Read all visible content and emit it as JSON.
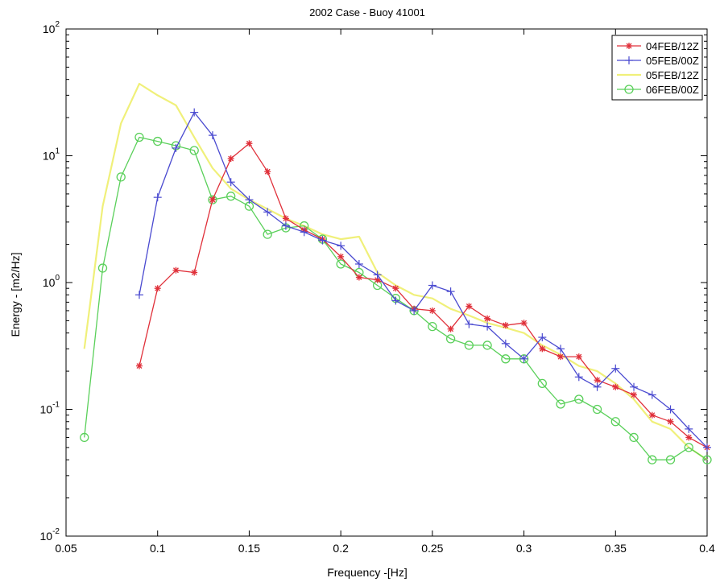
{
  "chart_data": {
    "type": "line",
    "title": "2002 Case - Buoy 41001",
    "xlabel": "Frequency -[Hz]",
    "ylabel": "Energy - [m2/Hz]",
    "xlim": [
      0.05,
      0.4
    ],
    "ylim": [
      0.01,
      100
    ],
    "yscale": "log",
    "grid": false,
    "legend_position": "top-right",
    "x_ticks": [
      0.05,
      0.1,
      0.15,
      0.2,
      0.25,
      0.3,
      0.35,
      0.4
    ],
    "x_tick_labels": [
      "0.05",
      "0.1",
      "0.15",
      "0.2",
      "0.25",
      "0.3",
      "0.35",
      "0.4"
    ],
    "y_ticks": [
      0.01,
      0.1,
      1,
      10,
      100
    ],
    "y_tick_bases": [
      "10",
      "10",
      "10",
      "10",
      "10"
    ],
    "y_tick_exps": [
      "-2",
      "-1",
      "0",
      "1",
      "2"
    ],
    "series": [
      {
        "name": "04FEB/12Z",
        "color": "#e0303a",
        "marker": "star",
        "x": [
          0.09,
          0.1,
          0.11,
          0.12,
          0.13,
          0.14,
          0.15,
          0.16,
          0.17,
          0.18,
          0.19,
          0.2,
          0.21,
          0.22,
          0.23,
          0.24,
          0.25,
          0.26,
          0.27,
          0.28,
          0.29,
          0.3,
          0.31,
          0.32,
          0.33,
          0.34,
          0.35,
          0.36,
          0.37,
          0.38,
          0.39,
          0.4
        ],
        "y": [
          0.22,
          0.9,
          1.25,
          1.2,
          4.5,
          9.5,
          12.5,
          7.5,
          3.2,
          2.6,
          2.2,
          1.6,
          1.1,
          1.05,
          0.9,
          0.62,
          0.6,
          0.43,
          0.65,
          0.52,
          0.46,
          0.48,
          0.3,
          0.26,
          0.26,
          0.17,
          0.15,
          0.13,
          0.09,
          0.08,
          0.06,
          0.05
        ]
      },
      {
        "name": "05FEB/00Z",
        "color": "#4a4ad0",
        "marker": "plus",
        "x": [
          0.09,
          0.1,
          0.11,
          0.12,
          0.13,
          0.14,
          0.15,
          0.16,
          0.17,
          0.18,
          0.19,
          0.2,
          0.21,
          0.22,
          0.23,
          0.24,
          0.25,
          0.26,
          0.27,
          0.28,
          0.29,
          0.3,
          0.31,
          0.32,
          0.33,
          0.34,
          0.35,
          0.36,
          0.37,
          0.38,
          0.39,
          0.4
        ],
        "y": [
          0.8,
          4.7,
          11.5,
          22,
          14.5,
          6.2,
          4.5,
          3.6,
          2.8,
          2.5,
          2.15,
          1.95,
          1.4,
          1.15,
          0.72,
          0.6,
          0.95,
          0.85,
          0.47,
          0.45,
          0.33,
          0.25,
          0.37,
          0.3,
          0.18,
          0.15,
          0.21,
          0.15,
          0.13,
          0.1,
          0.07,
          0.05
        ]
      },
      {
        "name": "05FEB/12Z",
        "color": "#f0f07a",
        "marker": "none",
        "x": [
          0.06,
          0.07,
          0.08,
          0.09,
          0.1,
          0.11,
          0.12,
          0.13,
          0.14,
          0.15,
          0.16,
          0.17,
          0.18,
          0.19,
          0.2,
          0.21,
          0.22,
          0.23,
          0.24,
          0.25,
          0.26,
          0.27,
          0.28,
          0.29,
          0.3,
          0.31,
          0.32,
          0.33,
          0.34,
          0.35,
          0.36,
          0.37,
          0.38,
          0.39,
          0.4
        ],
        "y": [
          0.3,
          4.0,
          18,
          37,
          30,
          25,
          14,
          8,
          5.5,
          4.5,
          3.8,
          3.2,
          2.8,
          2.4,
          2.2,
          2.3,
          1.2,
          0.95,
          0.8,
          0.75,
          0.62,
          0.55,
          0.48,
          0.44,
          0.4,
          0.32,
          0.27,
          0.22,
          0.2,
          0.16,
          0.12,
          0.08,
          0.07,
          0.05,
          0.04
        ]
      },
      {
        "name": "06FEB/00Z",
        "color": "#5ad05a",
        "marker": "circle",
        "x": [
          0.06,
          0.07,
          0.08,
          0.09,
          0.1,
          0.11,
          0.12,
          0.13,
          0.14,
          0.15,
          0.16,
          0.17,
          0.18,
          0.19,
          0.2,
          0.21,
          0.22,
          0.23,
          0.24,
          0.25,
          0.26,
          0.27,
          0.28,
          0.29,
          0.3,
          0.31,
          0.32,
          0.33,
          0.34,
          0.35,
          0.36,
          0.37,
          0.38,
          0.39,
          0.4
        ],
        "y": [
          0.06,
          1.3,
          6.8,
          14,
          13,
          12,
          11,
          4.5,
          4.8,
          4.0,
          2.4,
          2.7,
          2.8,
          2.2,
          1.4,
          1.2,
          0.95,
          0.75,
          0.6,
          0.45,
          0.36,
          0.32,
          0.32,
          0.25,
          0.25,
          0.16,
          0.11,
          0.12,
          0.1,
          0.08,
          0.06,
          0.04,
          0.04,
          0.05,
          0.04
        ]
      }
    ]
  }
}
